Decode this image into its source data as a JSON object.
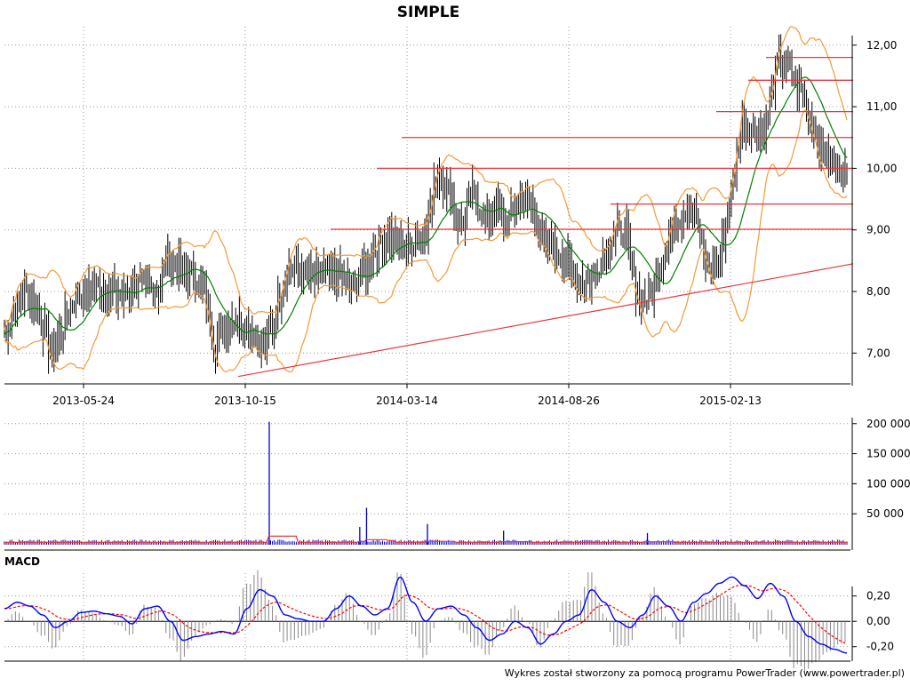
{
  "title": "SIMPLE",
  "footer": "Wykres został stworzony za pomocą programu PowerTrader (www.powertrader.pl)",
  "colors": {
    "candle": "#000000",
    "moving_average": "#008000",
    "bollinger": "#f39a3a",
    "levels": "#e8383d",
    "volume": "#0000cc",
    "volume_avg": "#e8383d",
    "macd": "#0000ff",
    "signal": "#ff0000",
    "histogram": "#888888",
    "grid": "#999999"
  },
  "chart_data": [
    {
      "type": "candlestick",
      "name": "price",
      "title": "SIMPLE",
      "x_tick_labels": [
        "2013-05-24",
        "2013-10-15",
        "2014-03-14",
        "2014-08-26",
        "2015-02-13"
      ],
      "y_tick_labels": [
        "7,00",
        "8,00",
        "9,00",
        "10,00",
        "11,00",
        "12,00"
      ],
      "ylim": [
        6.5,
        12.3
      ],
      "grid": true,
      "closes": [
        7.3,
        7.8,
        8.0,
        7.6,
        7.0,
        7.4,
        7.9,
        8.0,
        8.1,
        8.0,
        7.9,
        8.1,
        8.1,
        8.0,
        8.5,
        8.4,
        8.3,
        8.0,
        7.1,
        7.5,
        7.5,
        7.4,
        7.1,
        7.5,
        8.3,
        8.4,
        8.2,
        8.3,
        8.3,
        8.2,
        8.1,
        8.4,
        8.8,
        8.9,
        8.7,
        8.8,
        9.0,
        9.9,
        9.6,
        9.0,
        9.6,
        9.2,
        9.3,
        9.1,
        9.5,
        9.4,
        8.8,
        8.7,
        8.5,
        8.2,
        8.2,
        8.5,
        8.9,
        9.0,
        8.0,
        7.8,
        8.4,
        9.0,
        9.3,
        9.3,
        8.4,
        8.4,
        9.5,
        10.7,
        10.6,
        10.6,
        11.7,
        11.6,
        11.3,
        10.8,
        10.2,
        10.0,
        9.9
      ],
      "resistance_levels": [
        11.8,
        11.43,
        10.92,
        10.5,
        10.0,
        9.42,
        9.01
      ],
      "trendline": {
        "from": [
          "2013-10-15",
          6.62
        ],
        "to": [
          "end",
          8.45
        ]
      }
    },
    {
      "type": "bar",
      "name": "volume",
      "y_tick_labels": [
        "50 000",
        "100 000",
        "150 000",
        "200 000"
      ],
      "ylim": [
        0,
        210000
      ],
      "spikes": [
        {
          "index": 0.313,
          "value": 203000
        },
        {
          "index": 0.428,
          "value": 60000
        },
        {
          "index": 0.42,
          "value": 28000
        },
        {
          "index": 0.5,
          "value": 33000
        },
        {
          "index": 0.59,
          "value": 22000
        },
        {
          "index": 0.76,
          "value": 18000
        }
      ],
      "baseline": 3000
    },
    {
      "type": "line",
      "name": "macd",
      "title": "MACD",
      "y_tick_labels": [
        "0,20",
        "0,00",
        "-0,20"
      ],
      "ylim": [
        -0.3,
        0.38
      ],
      "macd": [
        0.1,
        0.15,
        0.12,
        0.05,
        -0.05,
        0.0,
        0.07,
        0.08,
        0.06,
        0.04,
        -0.02,
        0.1,
        0.12,
        0.0,
        -0.15,
        -0.12,
        -0.1,
        -0.08,
        -0.1,
        0.1,
        0.25,
        0.2,
        0.05,
        0.02,
        0.0,
        0.0,
        0.1,
        0.2,
        0.12,
        0.05,
        0.1,
        0.35,
        0.15,
        0.0,
        0.1,
        0.12,
        0.05,
        -0.05,
        -0.15,
        -0.1,
        0.0,
        -0.05,
        -0.18,
        -0.1,
        0.0,
        0.05,
        0.25,
        0.15,
        0.0,
        -0.05,
        0.05,
        0.2,
        0.12,
        0.0,
        0.15,
        0.22,
        0.3,
        0.35,
        0.28,
        0.18,
        0.3,
        0.2,
        0.0,
        -0.12,
        -0.18,
        -0.22,
        -0.25
      ],
      "grid": true
    }
  ]
}
